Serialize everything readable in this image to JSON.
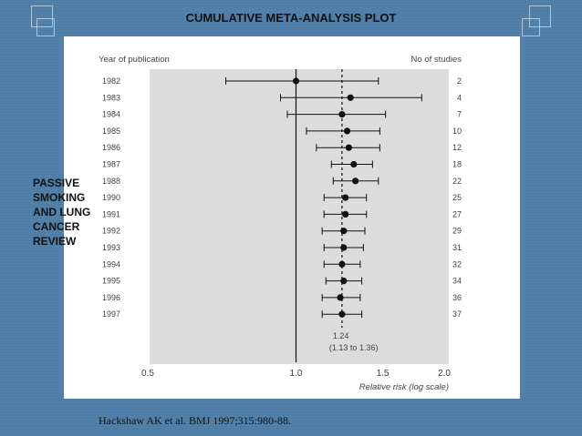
{
  "slide": {
    "title": "CUMULATIVE META-ANALYSIS PLOT",
    "side_label": "PASSIVE\nSMOKING\nAND LUNG\nCANCER\nREVIEW",
    "citation": "Hackshaw AK et al. BMJ 1997;315:980-88."
  },
  "colors": {
    "background": "#4f7fa8",
    "plot_shade": "#dcdcdc",
    "ink": "#111111"
  },
  "chart_data": {
    "type": "forest",
    "left_header": "Year of publication",
    "right_header": "No of studies",
    "xlabel": "Relative risk (log scale)",
    "x_scale": "log",
    "xlim": [
      0.5,
      2.0
    ],
    "x_ticks": [
      "0.5",
      "1.0",
      "1.5",
      "2.0"
    ],
    "x_tick_values": [
      0.5,
      1.0,
      1.5,
      2.0
    ],
    "reference_line": 1.0,
    "pooled_line": 1.24,
    "pooled_label": "1.24",
    "pooled_ci_label": "(1.13 to 1.36)",
    "rows": [
      {
        "year": "1982",
        "rr": 1.0,
        "lo": 0.72,
        "hi": 1.47,
        "n": "2"
      },
      {
        "year": "1983",
        "rr": 1.29,
        "lo": 0.93,
        "hi": 1.8,
        "n": "4"
      },
      {
        "year": "1984",
        "rr": 1.24,
        "lo": 0.96,
        "hi": 1.52,
        "n": "7"
      },
      {
        "year": "1985",
        "rr": 1.27,
        "lo": 1.05,
        "hi": 1.48,
        "n": "10"
      },
      {
        "year": "1986",
        "rr": 1.28,
        "lo": 1.1,
        "hi": 1.48,
        "n": "12"
      },
      {
        "year": "1987",
        "rr": 1.31,
        "lo": 1.18,
        "hi": 1.43,
        "n": "18"
      },
      {
        "year": "1988",
        "rr": 1.32,
        "lo": 1.19,
        "hi": 1.47,
        "n": "22"
      },
      {
        "year": "1990",
        "rr": 1.26,
        "lo": 1.14,
        "hi": 1.39,
        "n": "25"
      },
      {
        "year": "1991",
        "rr": 1.26,
        "lo": 1.14,
        "hi": 1.39,
        "n": "27"
      },
      {
        "year": "1992",
        "rr": 1.25,
        "lo": 1.13,
        "hi": 1.38,
        "n": "29"
      },
      {
        "year": "1993",
        "rr": 1.25,
        "lo": 1.14,
        "hi": 1.37,
        "n": "31"
      },
      {
        "year": "1994",
        "rr": 1.24,
        "lo": 1.14,
        "hi": 1.35,
        "n": "32"
      },
      {
        "year": "1995",
        "rr": 1.25,
        "lo": 1.15,
        "hi": 1.36,
        "n": "34"
      },
      {
        "year": "1996",
        "rr": 1.23,
        "lo": 1.13,
        "hi": 1.35,
        "n": "36"
      },
      {
        "year": "1997",
        "rr": 1.24,
        "lo": 1.13,
        "hi": 1.36,
        "n": "37"
      }
    ]
  }
}
